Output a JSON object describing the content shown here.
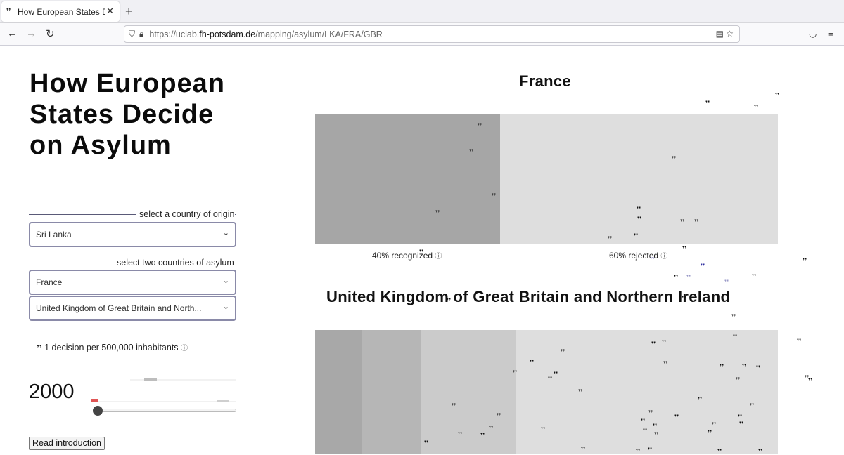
{
  "browser": {
    "tab_title": "How European States De",
    "url_prefix": "https://uclab.",
    "url_domain": "fh-potsdam.de",
    "url_path": "/mapping/asylum/LKA/FRA/GBR"
  },
  "page": {
    "title": "How European States Decide on Asylum",
    "origin_label": "select a country of origin",
    "origin_value": "Sri Lanka",
    "asylum_label": "select two countries of asylum",
    "asylum_value_1": "France",
    "asylum_value_2": "United Kingdom of Great Britain and Northern Ireland",
    "asylum_value_2_display": "United Kingdom of Great Britain and North...",
    "decisions_note": "1 decision per 500,000 inhabitants",
    "year": "2000",
    "intro_button": "Read introduction"
  },
  "charts": {
    "france": {
      "title": "France",
      "recognized_pct": 40,
      "rejected_pct": 60,
      "recognized_label": "40% recognized",
      "rejected_label": "60% rejected"
    },
    "uk": {
      "title": "United Kingdom of Great Britain and Northern Ireland"
    }
  },
  "colors": {
    "recognized": "#a6a6a6",
    "rejected": "#dedede",
    "uk_seg1": "#a8a8a8",
    "uk_seg2": "#b6b6b6",
    "uk_seg3": "#cbcbcb",
    "uk_seg4": "#dedede",
    "accent": "#e05555",
    "figure_highlight": "#3030a0"
  }
}
